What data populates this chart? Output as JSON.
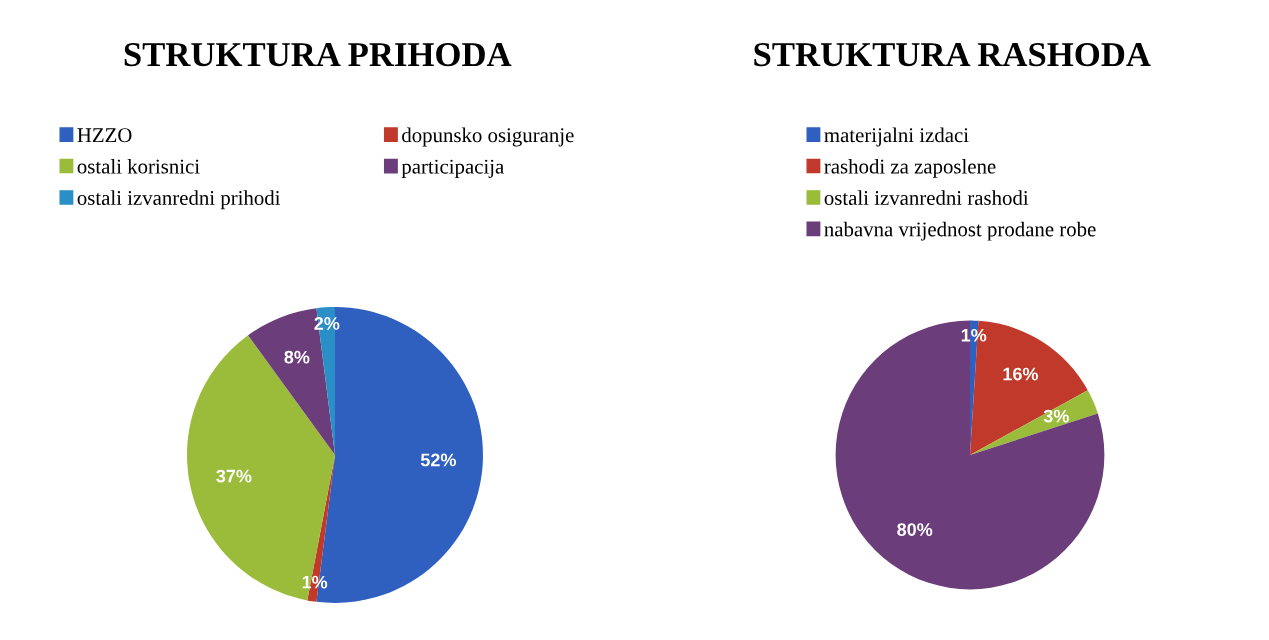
{
  "chart_data": [
    {
      "type": "pie",
      "title": "STRUKTURA PRIHODA",
      "legend": "top",
      "categories": [
        "HZZO",
        "dopunsko osiguranje",
        "ostali korisnici",
        "participacija",
        "ostali izvanredni prihodi"
      ],
      "values": [
        52,
        1,
        37,
        8,
        2
      ],
      "colors": [
        "#2f5fbf",
        "#c0392b",
        "#9bbb3b",
        "#6b3d7a",
        "#2a8fc6"
      ],
      "value_labels": [
        "52%",
        "1%",
        "37%",
        "8%",
        "2%"
      ]
    },
    {
      "type": "pie",
      "title": "STRUKTURA RASHODA",
      "legend": "top",
      "categories": [
        "materijalni izdaci",
        "rashodi za zaposlene",
        "ostali izvanredni rashodi",
        "nabavna vrijednost prodane robe"
      ],
      "values": [
        1,
        16,
        3,
        80
      ],
      "colors": [
        "#2f5fbf",
        "#c0392b",
        "#9bbb3b",
        "#6b3d7a"
      ],
      "value_labels": [
        "1%",
        "16%",
        "3%",
        "80%"
      ]
    }
  ]
}
